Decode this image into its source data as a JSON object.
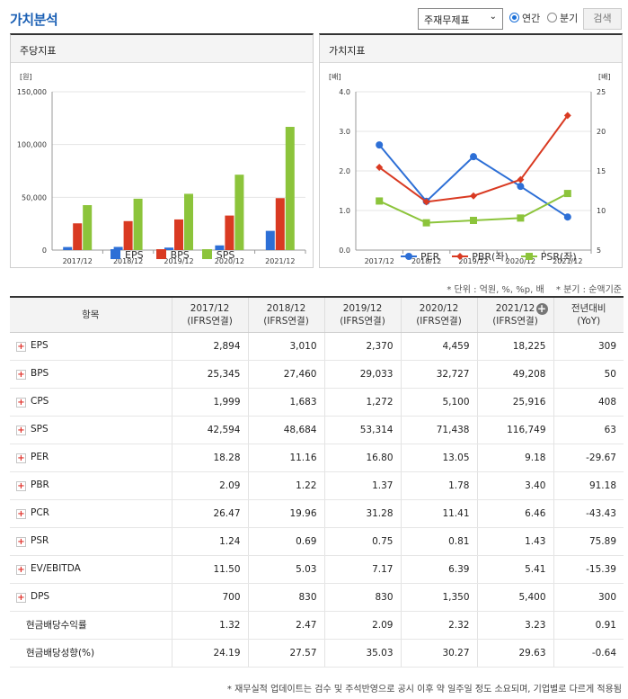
{
  "header": {
    "title": "가치분석",
    "select_value": "주재무제표",
    "radio_annual": "연간",
    "radio_quarter": "분기",
    "search_label": "검색"
  },
  "left_panel": {
    "title": "주당지표"
  },
  "right_panel": {
    "title": "가치지표"
  },
  "chart_data": [
    {
      "type": "bar",
      "unit_label": "[원]",
      "categories": [
        "2017/12",
        "2018/12",
        "2019/12",
        "2020/12",
        "2021/12"
      ],
      "ylim": [
        0,
        150000
      ],
      "yticks": [
        "150,000",
        "100,000",
        "50,000",
        "0"
      ],
      "series": [
        {
          "name": "EPS",
          "color": "#2d6fd6",
          "values": [
            2894,
            3010,
            2370,
            4459,
            18225
          ]
        },
        {
          "name": "BPS",
          "color": "#d93a22",
          "values": [
            25345,
            27460,
            29033,
            32727,
            49208
          ]
        },
        {
          "name": "SPS",
          "color": "#8cc43b",
          "values": [
            42594,
            48684,
            53314,
            71438,
            116749
          ]
        }
      ]
    },
    {
      "type": "line",
      "left_unit_label": "[배]",
      "right_unit_label": "[배]",
      "categories": [
        "2017/12",
        "2018/12",
        "2019/12",
        "2020/12",
        "2021/12"
      ],
      "ylim_left": [
        0,
        4
      ],
      "ylim_right": [
        5,
        25
      ],
      "yticks_left": [
        "4.0",
        "3.0",
        "2.0",
        "1.0",
        "0.0"
      ],
      "yticks_right": [
        "25",
        "20",
        "15",
        "10",
        "5"
      ],
      "series": [
        {
          "name": "PER",
          "axis": "right",
          "color": "#2d6fd6",
          "marker": "circle",
          "values": [
            18.28,
            11.16,
            16.8,
            13.05,
            9.18
          ]
        },
        {
          "name": "PBR(좌)",
          "axis": "left",
          "color": "#d93a22",
          "marker": "diamond",
          "values": [
            2.09,
            1.22,
            1.37,
            1.78,
            3.4
          ]
        },
        {
          "name": "PSR(좌)",
          "axis": "left",
          "color": "#8cc43b",
          "marker": "square",
          "values": [
            1.24,
            0.69,
            0.75,
            0.81,
            1.43
          ]
        }
      ]
    }
  ],
  "units_note": "* 단위 : 억원, %, %p, 배",
  "period_note": "* 분기 : 순액기준",
  "table": {
    "item_header": "항목",
    "columns": [
      {
        "period": "2017/12",
        "basis": "(IFRS연결)"
      },
      {
        "period": "2018/12",
        "basis": "(IFRS연결)"
      },
      {
        "period": "2019/12",
        "basis": "(IFRS연결)"
      },
      {
        "period": "2020/12",
        "basis": "(IFRS연결)"
      },
      {
        "period": "2021/12",
        "basis": "(IFRS연결)"
      }
    ],
    "yoy_header_1": "전년대비",
    "yoy_header_2": "(YoY)",
    "rows": [
      {
        "label": "EPS",
        "expandable": true,
        "values": [
          "2,894",
          "3,010",
          "2,370",
          "4,459",
          "18,225"
        ],
        "yoy": "309",
        "yoy_negative": false
      },
      {
        "label": "BPS",
        "expandable": true,
        "values": [
          "25,345",
          "27,460",
          "29,033",
          "32,727",
          "49,208"
        ],
        "yoy": "50",
        "yoy_negative": false
      },
      {
        "label": "CPS",
        "expandable": true,
        "values": [
          "1,999",
          "1,683",
          "1,272",
          "5,100",
          "25,916"
        ],
        "yoy": "408",
        "yoy_negative": false
      },
      {
        "label": "SPS",
        "expandable": true,
        "values": [
          "42,594",
          "48,684",
          "53,314",
          "71,438",
          "116,749"
        ],
        "yoy": "63",
        "yoy_negative": false
      },
      {
        "label": "PER",
        "expandable": true,
        "values": [
          "18.28",
          "11.16",
          "16.80",
          "13.05",
          "9.18"
        ],
        "yoy": "-29.67",
        "yoy_negative": true
      },
      {
        "label": "PBR",
        "expandable": true,
        "values": [
          "2.09",
          "1.22",
          "1.37",
          "1.78",
          "3.40"
        ],
        "yoy": "91.18",
        "yoy_negative": false
      },
      {
        "label": "PCR",
        "expandable": true,
        "values": [
          "26.47",
          "19.96",
          "31.28",
          "11.41",
          "6.46"
        ],
        "yoy": "-43.43",
        "yoy_negative": true
      },
      {
        "label": "PSR",
        "expandable": true,
        "values": [
          "1.24",
          "0.69",
          "0.75",
          "0.81",
          "1.43"
        ],
        "yoy": "75.89",
        "yoy_negative": false
      },
      {
        "label": "EV/EBITDA",
        "expandable": true,
        "values": [
          "11.50",
          "5.03",
          "7.17",
          "6.39",
          "5.41"
        ],
        "yoy": "-15.39",
        "yoy_negative": true
      },
      {
        "label": "DPS",
        "expandable": true,
        "values": [
          "700",
          "830",
          "830",
          "1,350",
          "5,400"
        ],
        "yoy": "300",
        "yoy_negative": false
      },
      {
        "label": "현금배당수익률",
        "expandable": false,
        "values": [
          "1.32",
          "2.47",
          "2.09",
          "2.32",
          "3.23"
        ],
        "yoy": "0.91",
        "yoy_negative": false
      },
      {
        "label": "현금배당성향(%)",
        "expandable": false,
        "values": [
          "24.19",
          "27.57",
          "35.03",
          "30.27",
          "29.63"
        ],
        "yoy": "-0.64",
        "yoy_negative": true
      }
    ]
  },
  "footnote": "* 재무실적 업데이트는 검수 및 주석반영으로 공시 이후 약 일주일 정도 소요되며, 기업별로 다르게 적용됨"
}
